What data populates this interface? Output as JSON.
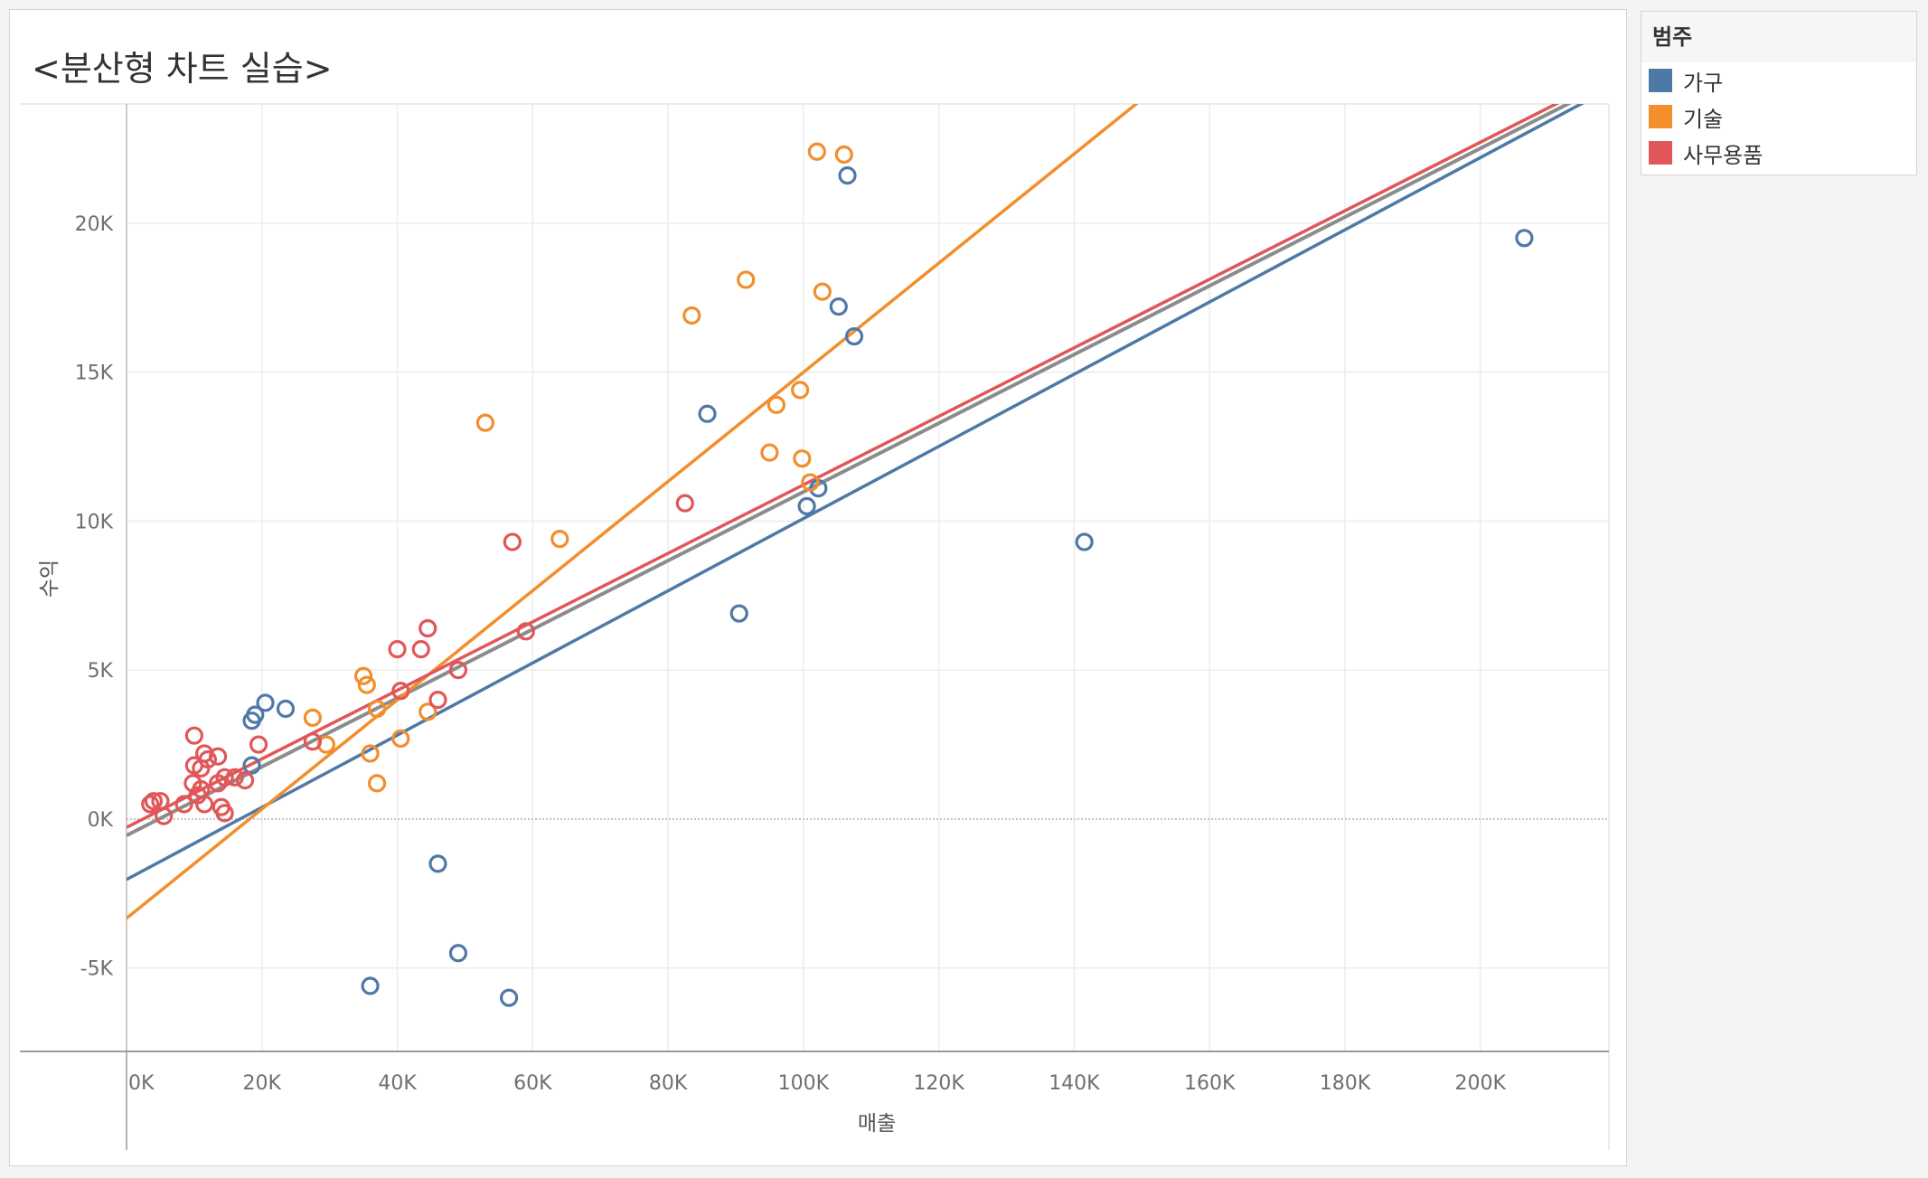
{
  "title": "<분산형 차트 실습>",
  "legend": {
    "title": "범주",
    "items": [
      {
        "label": "가구",
        "color": "#4e79a7"
      },
      {
        "label": "기술",
        "color": "#f28e2b"
      },
      {
        "label": "사무용품",
        "color": "#e15759"
      }
    ]
  },
  "chart_data": {
    "type": "scatter",
    "title": "<분산형 차트 실습>",
    "xlabel": "매출",
    "ylabel": "수익",
    "xlim": [
      0,
      219000
    ],
    "ylim": [
      -7800,
      24000
    ],
    "x_ticks": [
      {
        "value": 0,
        "label": "0K"
      },
      {
        "value": 20000,
        "label": "20K"
      },
      {
        "value": 40000,
        "label": "40K"
      },
      {
        "value": 60000,
        "label": "60K"
      },
      {
        "value": 80000,
        "label": "80K"
      },
      {
        "value": 100000,
        "label": "100K"
      },
      {
        "value": 120000,
        "label": "120K"
      },
      {
        "value": 140000,
        "label": "140K"
      },
      {
        "value": 160000,
        "label": "160K"
      },
      {
        "value": 180000,
        "label": "180K"
      },
      {
        "value": 200000,
        "label": "200K"
      }
    ],
    "y_ticks": [
      {
        "value": -5000,
        "label": "-5K"
      },
      {
        "value": 0,
        "label": "0K"
      },
      {
        "value": 5000,
        "label": "5K"
      },
      {
        "value": 10000,
        "label": "10K"
      },
      {
        "value": 15000,
        "label": "15K"
      },
      {
        "value": 20000,
        "label": "20K"
      }
    ],
    "grid": true,
    "legend_position": "right",
    "series": [
      {
        "name": "가구",
        "color": "#4e79a7",
        "points": [
          [
            106500,
            21600
          ],
          [
            206500,
            19500
          ],
          [
            105200,
            17200
          ],
          [
            107500,
            16200
          ],
          [
            85800,
            13600
          ],
          [
            102200,
            11100
          ],
          [
            100500,
            10500
          ],
          [
            141500,
            9300
          ],
          [
            90500,
            6900
          ],
          [
            20500,
            3900
          ],
          [
            23500,
            3700
          ],
          [
            19000,
            3500
          ],
          [
            18500,
            3300
          ],
          [
            18500,
            1800
          ],
          [
            46000,
            -1500
          ],
          [
            49000,
            -4500
          ],
          [
            36000,
            -5600
          ],
          [
            56500,
            -6000
          ]
        ],
        "trend": [
          [
            0,
            -2030
          ],
          [
            219000,
            24500
          ]
        ]
      },
      {
        "name": "기술",
        "color": "#f28e2b",
        "points": [
          [
            102000,
            22400
          ],
          [
            106000,
            22300
          ],
          [
            91500,
            18100
          ],
          [
            102800,
            17700
          ],
          [
            83500,
            16900
          ],
          [
            99500,
            14400
          ],
          [
            96000,
            13900
          ],
          [
            53000,
            13300
          ],
          [
            95000,
            12300
          ],
          [
            99800,
            12100
          ],
          [
            101000,
            11300
          ],
          [
            64000,
            9400
          ],
          [
            35000,
            4800
          ],
          [
            35500,
            4500
          ],
          [
            37000,
            3700
          ],
          [
            44500,
            3600
          ],
          [
            27500,
            3400
          ],
          [
            40500,
            2700
          ],
          [
            29500,
            2500
          ],
          [
            36000,
            2200
          ],
          [
            37000,
            1200
          ]
        ],
        "trend": [
          [
            0,
            -3330
          ],
          [
            219000,
            36800
          ]
        ]
      },
      {
        "name": "사무용품",
        "color": "#e15759",
        "points": [
          [
            82500,
            10600
          ],
          [
            57000,
            9300
          ],
          [
            59000,
            6300
          ],
          [
            44500,
            6400
          ],
          [
            40000,
            5700
          ],
          [
            43500,
            5700
          ],
          [
            49000,
            5000
          ],
          [
            40500,
            4300
          ],
          [
            46000,
            4000
          ],
          [
            10000,
            2800
          ],
          [
            27500,
            2600
          ],
          [
            19500,
            2500
          ],
          [
            11500,
            2200
          ],
          [
            13500,
            2100
          ],
          [
            12000,
            2000
          ],
          [
            10000,
            1800
          ],
          [
            11000,
            1700
          ],
          [
            14500,
            1400
          ],
          [
            16000,
            1400
          ],
          [
            17500,
            1300
          ],
          [
            9800,
            1200
          ],
          [
            13500,
            1200
          ],
          [
            11000,
            1000
          ],
          [
            10500,
            800
          ],
          [
            4000,
            600
          ],
          [
            3500,
            500
          ],
          [
            5000,
            600
          ],
          [
            8500,
            500
          ],
          [
            11500,
            500
          ],
          [
            14000,
            400
          ],
          [
            14500,
            200
          ],
          [
            5500,
            100
          ]
        ],
        "trend": [
          [
            0,
            -280
          ],
          [
            219000,
            24900
          ]
        ]
      }
    ],
    "overall_trend": {
      "color": "#8c8c8c",
      "line": [
        [
          0,
          -550
        ],
        [
          219000,
          24700
        ]
      ]
    }
  }
}
